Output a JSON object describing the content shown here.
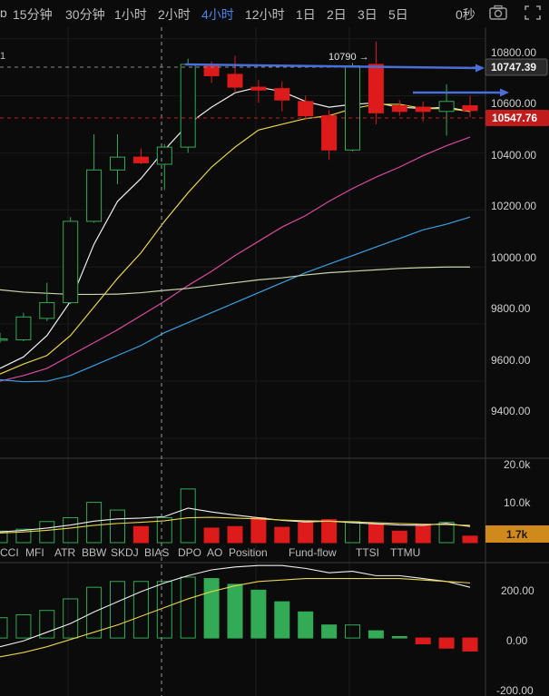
{
  "toolbar": {
    "prefix": "ɒ",
    "timeframes": [
      {
        "label": "15分钟",
        "active": false
      },
      {
        "label": "30分钟",
        "active": false
      },
      {
        "label": "1小时",
        "active": false
      },
      {
        "label": "2小时",
        "active": false
      },
      {
        "label": "4小时",
        "active": true
      },
      {
        "label": "12小时",
        "active": false
      },
      {
        "label": "1日",
        "active": false
      },
      {
        "label": "2日",
        "active": false
      },
      {
        "label": "3日",
        "active": false
      },
      {
        "label": "5日",
        "active": false
      }
    ],
    "timer": "0秒",
    "icons": [
      "camera-icon",
      "fullscreen-icon"
    ]
  },
  "colors": {
    "up": "#33aa55",
    "down": "#dd1b1b",
    "accent": "#4a86e8",
    "price_tag": "#c01c1c",
    "volume_tag": "#d08a1c"
  },
  "main_axis": {
    "tick_labels": [
      "10800.00",
      "10600.00",
      "10400.00",
      "10200.00",
      "10000.00",
      "9800.00",
      "9600.00",
      "9400.00"
    ],
    "current_price": "10547.76",
    "marked_price": "10747.39",
    "high_annotation": "10790 →",
    "left_marker": "1"
  },
  "volume_axis": {
    "tick_labels": [
      "20.0k",
      "10.0k"
    ],
    "current_volume": "1.7k"
  },
  "indicator_tabs": [
    "CCI",
    "MFI",
    "ATR",
    "BBW",
    "SKDJ",
    "BIAS",
    "DPO",
    "AO",
    "Position",
    "Fund-flow",
    "TTSI",
    "TTMU"
  ],
  "indicator_axis": {
    "tick_labels": [
      "200.00",
      "0.00",
      "-200.00"
    ]
  },
  "chart_data": {
    "type": "candlestick",
    "y_unit": "price",
    "ylim": [
      9330,
      10840
    ],
    "candles": [
      {
        "o": 9745,
        "h": 9770,
        "l": 9735,
        "c": 9748
      },
      {
        "o": 9745,
        "h": 9840,
        "l": 9740,
        "c": 9825
      },
      {
        "o": 9820,
        "h": 9945,
        "l": 9810,
        "c": 9875
      },
      {
        "o": 9875,
        "h": 10175,
        "l": 9870,
        "c": 10160
      },
      {
        "o": 10160,
        "h": 10465,
        "l": 10155,
        "c": 10340
      },
      {
        "o": 10340,
        "h": 10465,
        "l": 10290,
        "c": 10385
      },
      {
        "o": 10385,
        "h": 10415,
        "l": 10360,
        "c": 10365
      },
      {
        "o": 10360,
        "h": 10430,
        "l": 10270,
        "c": 10420
      },
      {
        "o": 10420,
        "h": 10730,
        "l": 10400,
        "c": 10710
      },
      {
        "o": 10710,
        "h": 10720,
        "l": 10645,
        "c": 10670
      },
      {
        "o": 10675,
        "h": 10740,
        "l": 10610,
        "c": 10630
      },
      {
        "o": 10630,
        "h": 10655,
        "l": 10575,
        "c": 10620
      },
      {
        "o": 10625,
        "h": 10650,
        "l": 10545,
        "c": 10585
      },
      {
        "o": 10580,
        "h": 10600,
        "l": 10515,
        "c": 10530
      },
      {
        "o": 10530,
        "h": 10550,
        "l": 10375,
        "c": 10410
      },
      {
        "o": 10410,
        "h": 10715,
        "l": 10405,
        "c": 10705
      },
      {
        "o": 10710,
        "h": 10790,
        "l": 10500,
        "c": 10540
      },
      {
        "o": 10565,
        "h": 10585,
        "l": 10530,
        "c": 10545
      },
      {
        "o": 10560,
        "h": 10580,
        "l": 10510,
        "c": 10545
      },
      {
        "o": 10545,
        "h": 10640,
        "l": 10460,
        "c": 10580
      },
      {
        "o": 10565,
        "h": 10600,
        "l": 10525,
        "c": 10548
      }
    ],
    "ma_lines": [
      {
        "color": "#f0f0f0",
        "values": [
          9645,
          9685,
          9760,
          9880,
          10080,
          10230,
          10310,
          10410,
          10500,
          10560,
          10610,
          10630,
          10615,
          10580,
          10560,
          10570,
          10575,
          10560,
          10555,
          10560,
          10545
        ]
      },
      {
        "color": "#e8d44a",
        "values": [
          9625,
          9660,
          9690,
          9760,
          9860,
          9960,
          10050,
          10160,
          10260,
          10350,
          10420,
          10480,
          10500,
          10520,
          10530,
          10555,
          10570,
          10570,
          10555,
          10555,
          10545
        ]
      },
      {
        "color": "#d84aa0",
        "values": [
          9600,
          9620,
          9645,
          9690,
          9735,
          9780,
          9830,
          9880,
          9935,
          9985,
          10040,
          10090,
          10140,
          10180,
          10230,
          10275,
          10315,
          10350,
          10390,
          10425,
          10455
        ]
      },
      {
        "color": "#3aa0e0",
        "values": [
          9605,
          9598,
          9600,
          9620,
          9655,
          9690,
          9725,
          9770,
          9805,
          9840,
          9875,
          9910,
          9945,
          9980,
          10010,
          10040,
          10070,
          10100,
          10130,
          10150,
          10175
        ]
      },
      {
        "color": "#c8d6a8",
        "values": [
          9920,
          9912,
          9908,
          9904,
          9904,
          9905,
          9910,
          9918,
          9925,
          9935,
          9945,
          9955,
          9962,
          9972,
          9980,
          9985,
          9990,
          9995,
          9998,
          10000,
          10000
        ]
      }
    ],
    "volume": {
      "values": [
        3000,
        3500,
        5500,
        6500,
        10500,
        8500,
        4200,
        6500,
        14000,
        3800,
        4200,
        6500,
        4000,
        5200,
        6000,
        5500,
        4800,
        3000,
        4500,
        5300,
        1700
      ],
      "ylim": [
        0,
        22000
      ],
      "lines": [
        {
          "color": "#f0f0f0",
          "values": [
            2800,
            3200,
            3800,
            4600,
            5600,
            6200,
            6400,
            6800,
            9000,
            8000,
            7200,
            6500,
            5800,
            5400,
            5600,
            5200,
            4900,
            4600,
            4500,
            5000,
            4200
          ]
        },
        {
          "color": "#e8d44a",
          "values": [
            2500,
            2800,
            3200,
            3800,
            4500,
            5000,
            5300,
            5700,
            6500,
            6600,
            6400,
            6200,
            5900,
            5700,
            5600,
            5400,
            5200,
            5000,
            4800,
            4700,
            4500
          ]
        }
      ]
    },
    "indicator": {
      "values": [
        70,
        80,
        95,
        135,
        175,
        195,
        195,
        195,
        210,
        205,
        185,
        165,
        125,
        90,
        45,
        45,
        25,
        5,
        -20,
        -35,
        -45
      ],
      "ylim": [
        -200,
        260
      ],
      "lines": [
        {
          "color": "#f0f0f0",
          "values": [
            -30,
            -10,
            20,
            50,
            90,
            125,
            160,
            190,
            215,
            235,
            245,
            250,
            250,
            240,
            225,
            230,
            215,
            215,
            205,
            195,
            175
          ]
        },
        {
          "color": "#e8d44a",
          "values": [
            -65,
            -50,
            -30,
            -5,
            20,
            45,
            75,
            105,
            135,
            160,
            180,
            195,
            200,
            205,
            205,
            205,
            205,
            205,
            200,
            195,
            190
          ]
        }
      ]
    }
  }
}
